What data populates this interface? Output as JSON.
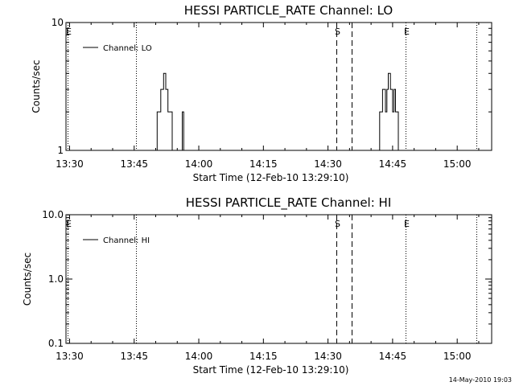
{
  "footer": {
    "timestamp": "14-May-2010 19:03"
  },
  "chart_data": [
    {
      "type": "line",
      "title": "HESSI PARTICLE_RATE Channel: LO",
      "xlabel": "Start Time (12-Feb-10 13:29:10)",
      "ylabel": "Counts/sec",
      "yscale": "log",
      "ylim": [
        1,
        10
      ],
      "ytick_labels": [
        "1",
        "10"
      ],
      "xlim": [
        "13:29:10",
        "15:08:00"
      ],
      "xtick_labels": [
        "13:30",
        "13:45",
        "14:00",
        "14:15",
        "14:30",
        "14:45",
        "15:00"
      ],
      "legend": {
        "label": "Channel: LO",
        "placement": "top-left"
      },
      "series": [
        {
          "name": "Channel: LO",
          "points": [
            [
              "13:50:00",
              1
            ],
            [
              "13:50:20",
              2
            ],
            [
              "13:51:10",
              3
            ],
            [
              "13:51:50",
              4
            ],
            [
              "13:52:20",
              3
            ],
            [
              "13:52:50",
              2
            ],
            [
              "13:53:50",
              1
            ],
            [
              "13:56:00",
              1
            ],
            [
              "13:56:10",
              2
            ],
            [
              "13:56:30",
              1
            ],
            [
              "14:41:40",
              1
            ],
            [
              "14:42:00",
              2
            ],
            [
              "14:42:40",
              3
            ],
            [
              "14:43:20",
              2
            ],
            [
              "14:43:40",
              3
            ],
            [
              "14:44:00",
              4
            ],
            [
              "14:44:30",
              3
            ],
            [
              "14:45:00",
              2
            ],
            [
              "14:45:20",
              3
            ],
            [
              "14:45:40",
              2
            ],
            [
              "14:46:20",
              1
            ],
            [
              "14:46:40",
              1
            ]
          ]
        }
      ],
      "markers": [
        {
          "time": "13:29:30",
          "style": "dotted",
          "label": "E"
        },
        {
          "time": "13:45:30",
          "style": "dotted",
          "label": ""
        },
        {
          "time": "14:32:00",
          "style": "dashed",
          "label": "S"
        },
        {
          "time": "14:35:30",
          "style": "dashed",
          "label": ""
        },
        {
          "time": "14:48:00",
          "style": "dotted",
          "label": "E"
        },
        {
          "time": "15:04:30",
          "style": "dotted",
          "label": ""
        }
      ]
    },
    {
      "type": "line",
      "title": "HESSI PARTICLE_RATE Channel: HI",
      "xlabel": "Start Time (12-Feb-10 13:29:10)",
      "ylabel": "Counts/sec",
      "yscale": "log",
      "ylim": [
        0.1,
        10
      ],
      "ytick_labels": [
        "0.1",
        "1.0",
        "10.0"
      ],
      "xlim": [
        "13:29:10",
        "15:08:00"
      ],
      "xtick_labels": [
        "13:30",
        "13:45",
        "14:00",
        "14:15",
        "14:30",
        "14:45",
        "15:00"
      ],
      "legend": {
        "label": "Channel: HI",
        "placement": "top-left"
      },
      "series": [
        {
          "name": "Channel: HI",
          "points": []
        }
      ],
      "markers": [
        {
          "time": "13:29:30",
          "style": "dotted",
          "label": "E"
        },
        {
          "time": "13:45:30",
          "style": "dotted",
          "label": ""
        },
        {
          "time": "14:32:00",
          "style": "dashed",
          "label": "S"
        },
        {
          "time": "14:35:30",
          "style": "dashed",
          "label": ""
        },
        {
          "time": "14:48:00",
          "style": "dotted",
          "label": "E"
        },
        {
          "time": "15:04:30",
          "style": "dotted",
          "label": ""
        }
      ]
    }
  ]
}
